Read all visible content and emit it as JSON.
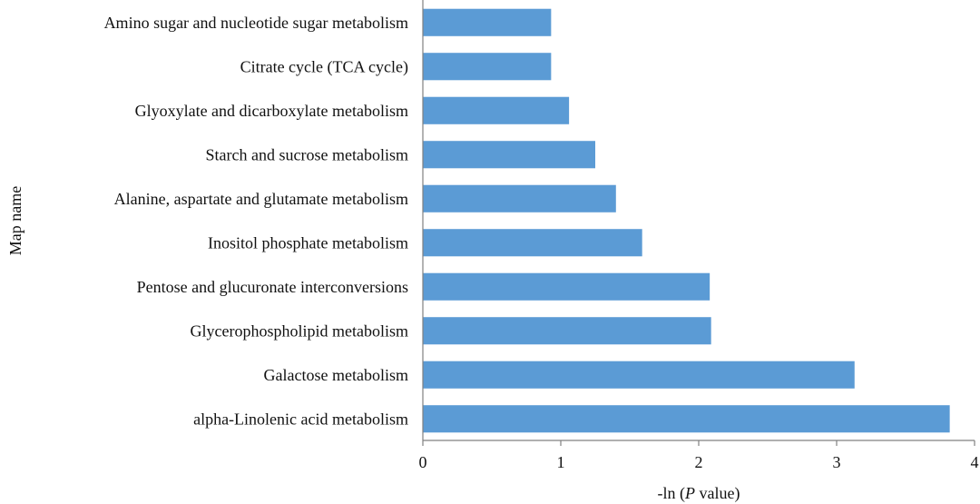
{
  "chart_data": {
    "type": "bar",
    "orientation": "horizontal",
    "title": "",
    "xlabel_prefix": "-ln (",
    "xlabel_italic": "P",
    "xlabel_suffix": " value)",
    "ylabel": "Map name",
    "xlim": [
      0,
      4
    ],
    "xticks": [
      "0",
      "1",
      "2",
      "3",
      "4"
    ],
    "grid": false,
    "bar_color": "#5B9BD5",
    "categories": [
      "Amino sugar and nucleotide sugar metabolism",
      "Citrate cycle (TCA cycle)",
      "Glyoxylate and dicarboxylate metabolism",
      "Starch and sucrose metabolism",
      "Alanine, aspartate and glutamate metabolism",
      "Inositol phosphate metabolism",
      "Pentose and glucuronate interconversions",
      "Glycerophospholipid metabolism",
      "Galactose metabolism",
      "alpha-Linolenic acid metabolism"
    ],
    "values": [
      0.93,
      0.93,
      1.06,
      1.25,
      1.4,
      1.59,
      2.08,
      2.09,
      3.13,
      3.82
    ]
  }
}
